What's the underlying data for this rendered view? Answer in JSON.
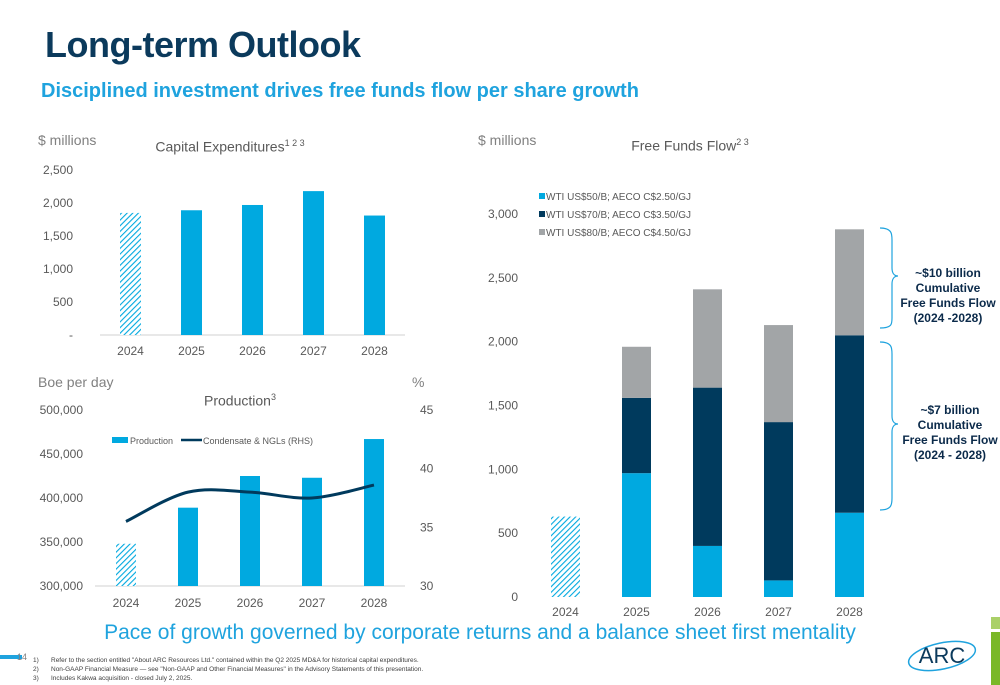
{
  "title": "Long-term Outlook",
  "subtitle": "Disciplined investment drives free funds flow per share growth",
  "bottom_banner": "Pace of growth governed by corporate returns and a balance sheet first mentality",
  "page_number": "14",
  "footnotes": [
    {
      "num": "1)",
      "text": "Refer to the section entitled \"About ARC Resources Ltd.\" contained within the Q2 2025 MD&A for historical capital expenditures."
    },
    {
      "num": "2)",
      "text": "Non-GAAP Financial Measure — see \"Non-GAAP and Other Financial Measures\" in the Advisory Statements of this presentation."
    },
    {
      "num": "3)",
      "text": "Includes Kakwa acquisition - closed July 2, 2025."
    }
  ],
  "logo_text": "ARC",
  "colors": {
    "light_blue": "#00a9e0",
    "navy": "#003a5d",
    "gray": "#a2a5a7",
    "hatch": "#00a9e0"
  },
  "annotations": {
    "upper": [
      "~$10 billion",
      "Cumulative",
      "Free Funds Flow",
      "(2024 -2028)"
    ],
    "lower": [
      "~$7 billion",
      "Cumulative",
      "Free Funds Flow",
      "(2024 - 2028)"
    ]
  },
  "chart_data": [
    {
      "id": "capex",
      "type": "bar",
      "unit_label": "$ millions",
      "title": "Capital Expenditures",
      "title_sup": "1 2 3",
      "categories": [
        "2024",
        "2025",
        "2026",
        "2027",
        "2028"
      ],
      "values": [
        1850,
        1890,
        1970,
        2180,
        1810
      ],
      "hatched": [
        true,
        false,
        false,
        false,
        false
      ],
      "ylim": [
        0,
        2500
      ],
      "yticks": [
        0,
        500,
        1000,
        1500,
        2000,
        2500
      ],
      "ytick_labels": [
        "-",
        "500",
        "1,000",
        "1,500",
        "2,000",
        "2,500"
      ],
      "grid": false
    },
    {
      "id": "production",
      "type": "bar",
      "unit_label": "Boe per day",
      "unit_label_right": "%",
      "title": "Production",
      "title_sup": "3",
      "categories": [
        "2024",
        "2025",
        "2026",
        "2027",
        "2028"
      ],
      "values": [
        348000,
        389000,
        425000,
        423000,
        467000
      ],
      "hatched": [
        true,
        false,
        false,
        false,
        false
      ],
      "ylim": [
        300000,
        500000
      ],
      "yticks": [
        300000,
        350000,
        400000,
        450000,
        500000
      ],
      "ytick_labels": [
        "300,000",
        "350,000",
        "400,000",
        "450,000",
        "500,000"
      ],
      "y2lim": [
        30,
        45
      ],
      "y2ticks": [
        30,
        35,
        40,
        45
      ],
      "y2tick_labels": [
        "30",
        "35",
        "40",
        "45"
      ],
      "series": [
        {
          "name": "Production",
          "kind": "bar"
        },
        {
          "name": "Condensate & NGLs (RHS)",
          "kind": "line",
          "values": [
            35.5,
            38.0,
            38.0,
            37.5,
            38.6
          ]
        }
      ],
      "legend": "top-left"
    },
    {
      "id": "ffo",
      "type": "bar",
      "stacked": true,
      "unit_label": "$ millions",
      "title": "Free Funds Flow",
      "title_sup": "2 3",
      "categories": [
        "2024",
        "2025",
        "2026",
        "2027",
        "2028"
      ],
      "hist_2024": 630,
      "series": [
        {
          "name": "WTI US$50/B; AECO C$2.50/GJ",
          "values": [
            0,
            970,
            400,
            130,
            660
          ]
        },
        {
          "name": "WTI US$70/B; AECO C$3.50/GJ",
          "values": [
            0,
            590,
            1240,
            1240,
            1390
          ]
        },
        {
          "name": "WTI US$80/B; AECO C$4.50/GJ",
          "values": [
            0,
            400,
            770,
            760,
            830
          ]
        }
      ],
      "ylim": [
        0,
        3000
      ],
      "yticks": [
        0,
        500,
        1000,
        1500,
        2000,
        2500,
        3000
      ],
      "ytick_labels": [
        "0",
        "500",
        "1,000",
        "1,500",
        "2,000",
        "2,500",
        "3,000"
      ],
      "legend": "top-left"
    }
  ]
}
